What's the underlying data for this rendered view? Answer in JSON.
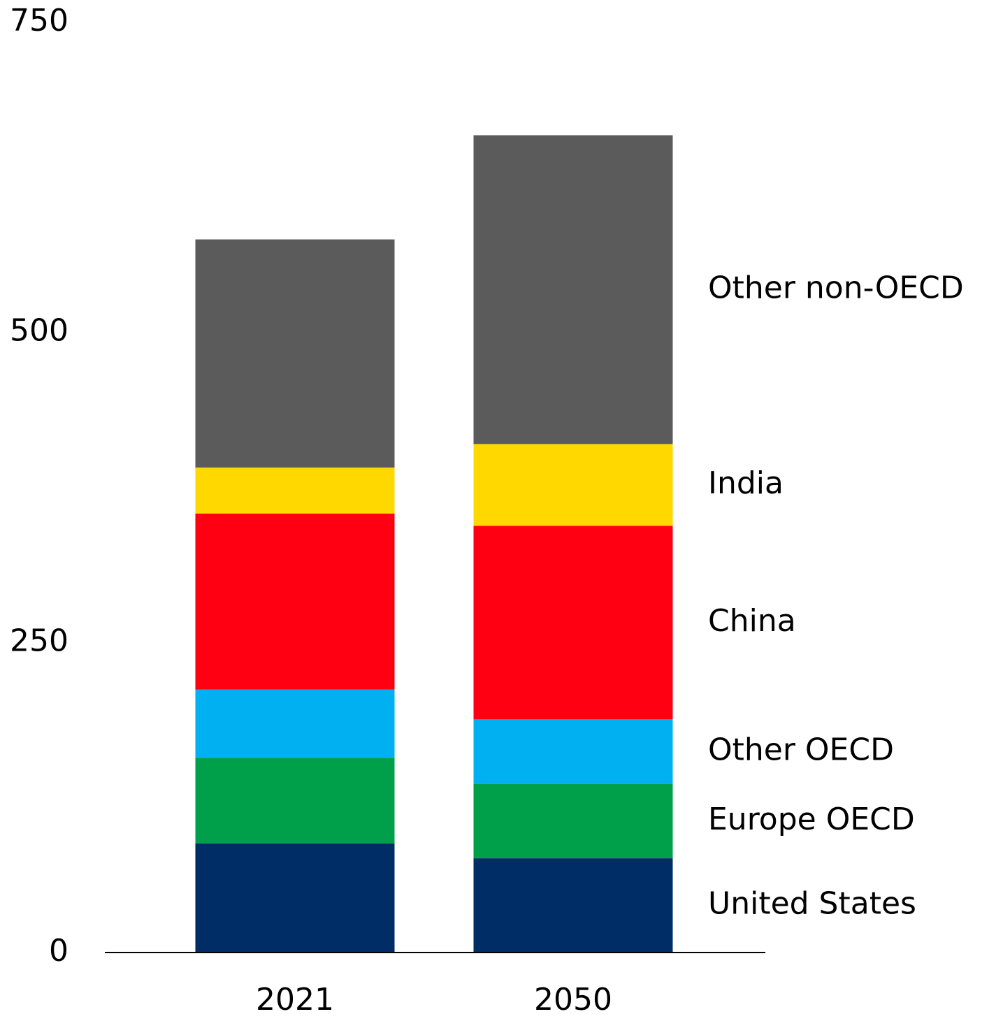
{
  "chart_data": {
    "type": "stacked-bar",
    "categories": [
      "2021",
      "2050"
    ],
    "series": [
      {
        "name": "United States",
        "color": "#012d66",
        "values": [
          88,
          76
        ]
      },
      {
        "name": "Europe OECD",
        "color": "#00a04a",
        "values": [
          69,
          60
        ]
      },
      {
        "name": "Other OECD",
        "color": "#00b0f0",
        "values": [
          55,
          52
        ]
      },
      {
        "name": "China",
        "color": "#ff0012",
        "values": [
          142,
          156
        ]
      },
      {
        "name": "India",
        "color": "#ffd800",
        "values": [
          37,
          66
        ]
      },
      {
        "name": "Other non-OECD",
        "color": "#5b5b5b",
        "values": [
          184,
          249
        ]
      }
    ],
    "ylim": [
      0,
      750
    ],
    "yticks": [
      0,
      250,
      500,
      750
    ],
    "grid": false
  }
}
